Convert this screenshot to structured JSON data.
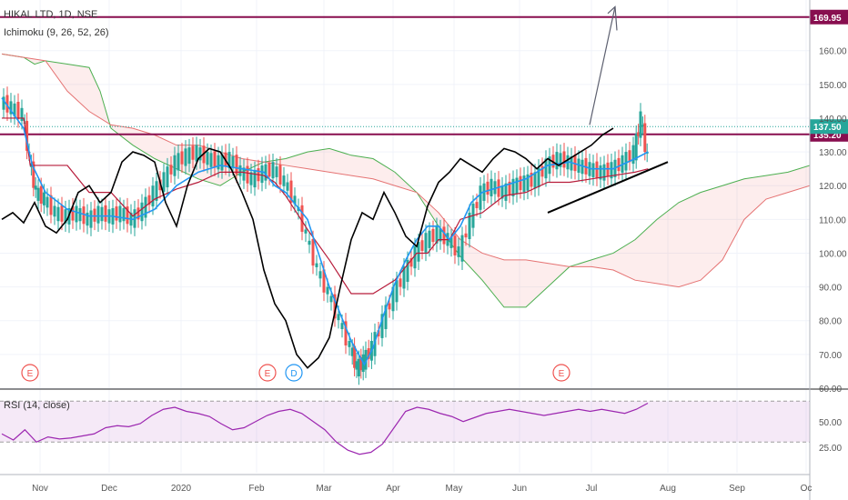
{
  "header": {
    "symbol_line": "HIKAL LTD, 1D, NSE",
    "indicator": "Ichimoku (9, 26, 52, 26)"
  },
  "rsi_panel": {
    "label": "RSI (14, close)"
  },
  "colors": {
    "bull": "#26a69a",
    "bear": "#ef5350",
    "tenkan": "#2196f3",
    "kijun": "#b71c3b",
    "chikou": "#000000",
    "span_a": "#4caf50",
    "span_b": "#e57373",
    "level": "#880e4f",
    "rsi": "#9c27b0"
  },
  "chart_data": [
    {
      "type": "line",
      "subtype": "candlestick-with-ichimoku",
      "title": "HIKAL LTD, 1D, NSE",
      "x_ticks": [
        "Nov",
        "Dec",
        "2020",
        "Feb",
        "Mar",
        "Apr",
        "May",
        "Jun",
        "Jul",
        "Aug",
        "Sep",
        "Oc"
      ],
      "y_ticks": [
        60,
        70,
        80,
        90,
        100,
        110,
        120,
        130,
        140,
        150,
        160
      ],
      "ylim": [
        60,
        175
      ],
      "horizontal_levels": [
        {
          "value": 169.95,
          "label": "169.95"
        },
        {
          "value": 135.2,
          "label": "135.20"
        }
      ],
      "last_price": {
        "value": 137.5,
        "label": "137.50"
      },
      "event_markers": [
        {
          "label": "E",
          "near": "Oct"
        },
        {
          "label": "E",
          "near": "Feb"
        },
        {
          "label": "D",
          "near": "Feb"
        },
        {
          "label": "E",
          "near": "Jun"
        }
      ],
      "price_path": [
        [
          0,
          145
        ],
        [
          0.5,
          143
        ],
        [
          1,
          141
        ],
        [
          1.3,
          128
        ],
        [
          1.6,
          118
        ],
        [
          2,
          116
        ],
        [
          2.5,
          112
        ],
        [
          3,
          111
        ],
        [
          3.5,
          112
        ],
        [
          4,
          110
        ],
        [
          4.5,
          112
        ],
        [
          5,
          111
        ],
        [
          5.5,
          112
        ],
        [
          6,
          110
        ],
        [
          6.5,
          113
        ],
        [
          7,
          118
        ],
        [
          7.5,
          122
        ],
        [
          8,
          127
        ],
        [
          8.5,
          129
        ],
        [
          9,
          130
        ],
        [
          9.5,
          128
        ],
        [
          10,
          127
        ],
        [
          10.5,
          128
        ],
        [
          11,
          124
        ],
        [
          11.5,
          122
        ],
        [
          12,
          124
        ],
        [
          12.5,
          125
        ],
        [
          13,
          121
        ],
        [
          13.5,
          115
        ],
        [
          14,
          105
        ],
        [
          14.5,
          95
        ],
        [
          15,
          88
        ],
        [
          15.5,
          80
        ],
        [
          16,
          72
        ],
        [
          16.3,
          66
        ],
        [
          16.6,
          68
        ],
        [
          17,
          72
        ],
        [
          17.5,
          80
        ],
        [
          18,
          88
        ],
        [
          18.5,
          94
        ],
        [
          19,
          100
        ],
        [
          19.5,
          104
        ],
        [
          20,
          106
        ],
        [
          20.5,
          104
        ],
        [
          21,
          100
        ],
        [
          21.5,
          110
        ],
        [
          22,
          118
        ],
        [
          22.5,
          120
        ],
        [
          23,
          118
        ],
        [
          23.5,
          120
        ],
        [
          24,
          121
        ],
        [
          24.5,
          122
        ],
        [
          25,
          126
        ],
        [
          25.5,
          128
        ],
        [
          26,
          127
        ],
        [
          26.5,
          126
        ],
        [
          27,
          125
        ],
        [
          27.5,
          124
        ],
        [
          28,
          125
        ],
        [
          28.5,
          127
        ],
        [
          29,
          130
        ],
        [
          29.3,
          140
        ],
        [
          29.6,
          128
        ]
      ],
      "tenkan_path": [
        [
          0,
          146
        ],
        [
          1,
          137
        ],
        [
          1.4,
          126
        ],
        [
          2,
          118
        ],
        [
          3,
          113
        ],
        [
          4,
          111
        ],
        [
          5,
          111
        ],
        [
          6,
          110
        ],
        [
          7,
          113
        ],
        [
          8,
          120
        ],
        [
          9,
          124
        ],
        [
          10,
          126
        ],
        [
          11,
          125
        ],
        [
          12,
          124
        ],
        [
          12.5,
          120
        ],
        [
          13,
          118
        ],
        [
          14,
          110
        ],
        [
          14.5,
          100
        ],
        [
          15,
          90
        ],
        [
          15.5,
          82
        ],
        [
          16,
          74
        ],
        [
          16.6,
          67
        ],
        [
          17,
          72
        ],
        [
          17.5,
          82
        ],
        [
          18,
          91
        ],
        [
          18.5,
          98
        ],
        [
          19,
          104
        ],
        [
          19.5,
          108
        ],
        [
          20,
          108
        ],
        [
          20.5,
          104
        ],
        [
          21,
          108
        ],
        [
          21.5,
          115
        ],
        [
          22,
          118
        ],
        [
          23,
          120
        ],
        [
          24,
          122
        ],
        [
          25,
          126
        ],
        [
          26,
          127
        ],
        [
          27,
          125
        ],
        [
          28,
          125
        ],
        [
          29,
          128
        ],
        [
          29.6,
          130
        ]
      ],
      "kijun_path": [
        [
          0,
          140
        ],
        [
          1,
          140
        ],
        [
          1.3,
          126
        ],
        [
          2,
          126
        ],
        [
          3,
          126
        ],
        [
          4,
          118
        ],
        [
          5,
          118
        ],
        [
          6,
          111
        ],
        [
          7,
          116
        ],
        [
          8,
          119
        ],
        [
          9,
          121
        ],
        [
          10,
          124
        ],
        [
          11,
          124
        ],
        [
          12,
          123
        ],
        [
          12.5,
          121
        ],
        [
          13,
          117
        ],
        [
          14,
          107
        ],
        [
          15,
          98
        ],
        [
          16,
          88
        ],
        [
          17,
          88
        ],
        [
          17.5,
          90
        ],
        [
          18,
          92
        ],
        [
          18.5,
          96
        ],
        [
          19,
          100
        ],
        [
          19.5,
          100
        ],
        [
          20,
          104
        ],
        [
          20.5,
          104
        ],
        [
          21,
          110
        ],
        [
          22,
          112
        ],
        [
          23,
          117
        ],
        [
          24,
          118
        ],
        [
          25,
          121
        ],
        [
          26,
          121
        ],
        [
          27,
          122
        ],
        [
          28,
          123
        ],
        [
          29,
          124
        ],
        [
          29.6,
          125
        ]
      ],
      "chikou_path": [
        [
          0,
          110
        ],
        [
          0.5,
          112
        ],
        [
          1,
          109
        ],
        [
          1.5,
          115
        ],
        [
          2,
          108
        ],
        [
          2.5,
          106
        ],
        [
          3,
          110
        ],
        [
          3.5,
          118
        ],
        [
          4,
          120
        ],
        [
          4.5,
          115
        ],
        [
          5,
          118
        ],
        [
          5.5,
          127
        ],
        [
          6,
          130
        ],
        [
          6.5,
          129
        ],
        [
          7,
          127
        ],
        [
          7.5,
          115
        ],
        [
          8,
          108
        ],
        [
          8.5,
          120
        ],
        [
          9,
          128
        ],
        [
          9.5,
          131
        ],
        [
          10,
          130
        ],
        [
          10.5,
          125
        ],
        [
          11,
          118
        ],
        [
          11.5,
          110
        ],
        [
          12,
          95
        ],
        [
          12.5,
          85
        ],
        [
          13,
          80
        ],
        [
          13.5,
          70
        ],
        [
          14,
          66
        ],
        [
          14.5,
          69
        ],
        [
          15,
          75
        ],
        [
          15.5,
          90
        ],
        [
          16,
          104
        ],
        [
          16.5,
          112
        ],
        [
          17,
          110
        ],
        [
          17.5,
          118
        ],
        [
          18,
          112
        ],
        [
          18.5,
          105
        ],
        [
          19,
          102
        ],
        [
          19.5,
          114
        ],
        [
          20,
          121
        ],
        [
          20.5,
          124
        ],
        [
          21,
          128
        ],
        [
          21.5,
          126
        ],
        [
          22,
          124
        ],
        [
          22.5,
          128
        ],
        [
          23,
          131
        ],
        [
          23.5,
          130
        ],
        [
          24,
          128
        ],
        [
          24.5,
          125
        ],
        [
          25,
          128
        ],
        [
          25.5,
          126
        ],
        [
          26,
          128
        ],
        [
          26.5,
          130
        ],
        [
          27,
          132
        ],
        [
          27.5,
          135
        ],
        [
          28,
          137
        ]
      ],
      "span_a_path": [
        [
          0,
          159
        ],
        [
          1,
          158
        ],
        [
          1.5,
          156
        ],
        [
          2,
          157
        ],
        [
          3,
          156
        ],
        [
          4,
          155
        ],
        [
          4.5,
          148
        ],
        [
          5,
          137
        ],
        [
          6,
          132
        ],
        [
          7,
          128
        ],
        [
          8,
          125
        ],
        [
          9,
          122
        ],
        [
          10,
          120
        ],
        [
          11,
          124
        ],
        [
          12,
          127
        ],
        [
          13,
          128
        ],
        [
          14,
          130
        ],
        [
          15,
          131
        ],
        [
          16,
          129
        ],
        [
          17,
          128
        ],
        [
          18,
          124
        ],
        [
          19,
          118
        ],
        [
          20,
          108
        ],
        [
          21,
          99
        ],
        [
          22,
          92
        ],
        [
          23,
          84
        ],
        [
          24,
          84
        ],
        [
          25,
          90
        ],
        [
          26,
          96
        ],
        [
          27,
          98
        ],
        [
          28,
          100
        ],
        [
          29,
          104
        ],
        [
          30,
          110
        ],
        [
          31,
          115
        ],
        [
          32,
          118
        ],
        [
          33,
          120
        ],
        [
          34,
          122
        ],
        [
          35,
          123
        ],
        [
          36,
          124
        ],
        [
          37,
          126
        ]
      ],
      "span_b_path": [
        [
          0,
          159
        ],
        [
          1,
          158
        ],
        [
          2,
          157
        ],
        [
          3,
          148
        ],
        [
          4,
          142
        ],
        [
          5,
          138
        ],
        [
          6,
          137
        ],
        [
          7,
          135
        ],
        [
          8,
          132
        ],
        [
          9,
          132
        ],
        [
          10,
          130
        ],
        [
          11,
          128
        ],
        [
          12,
          127
        ],
        [
          13,
          126
        ],
        [
          14,
          125
        ],
        [
          15,
          124
        ],
        [
          16,
          123
        ],
        [
          17,
          122
        ],
        [
          18,
          120
        ],
        [
          19,
          118
        ],
        [
          20,
          112
        ],
        [
          21,
          104
        ],
        [
          22,
          100
        ],
        [
          23,
          98
        ],
        [
          24,
          98
        ],
        [
          25,
          97
        ],
        [
          26,
          96
        ],
        [
          27,
          96
        ],
        [
          28,
          95
        ],
        [
          29,
          92
        ],
        [
          30,
          91
        ],
        [
          31,
          90
        ],
        [
          32,
          92
        ],
        [
          33,
          98
        ],
        [
          34,
          110
        ],
        [
          35,
          116
        ],
        [
          36,
          118
        ],
        [
          37,
          120
        ]
      ]
    },
    {
      "type": "line",
      "subtype": "rsi",
      "title": "RSI (14, close)",
      "y_ticks": [
        25.0,
        50.0
      ],
      "band": [
        30,
        70
      ],
      "ylim": [
        0,
        80
      ],
      "values": [
        38,
        32,
        42,
        30,
        35,
        33,
        34,
        36,
        38,
        44,
        46,
        45,
        48,
        56,
        62,
        64,
        60,
        58,
        55,
        48,
        42,
        44,
        50,
        56,
        60,
        62,
        58,
        50,
        42,
        30,
        22,
        18,
        20,
        28,
        44,
        60,
        64,
        62,
        58,
        55,
        50,
        54,
        58,
        60,
        62,
        60,
        58,
        56,
        58,
        60,
        62,
        60,
        62,
        60,
        58,
        62,
        68
      ]
    }
  ]
}
